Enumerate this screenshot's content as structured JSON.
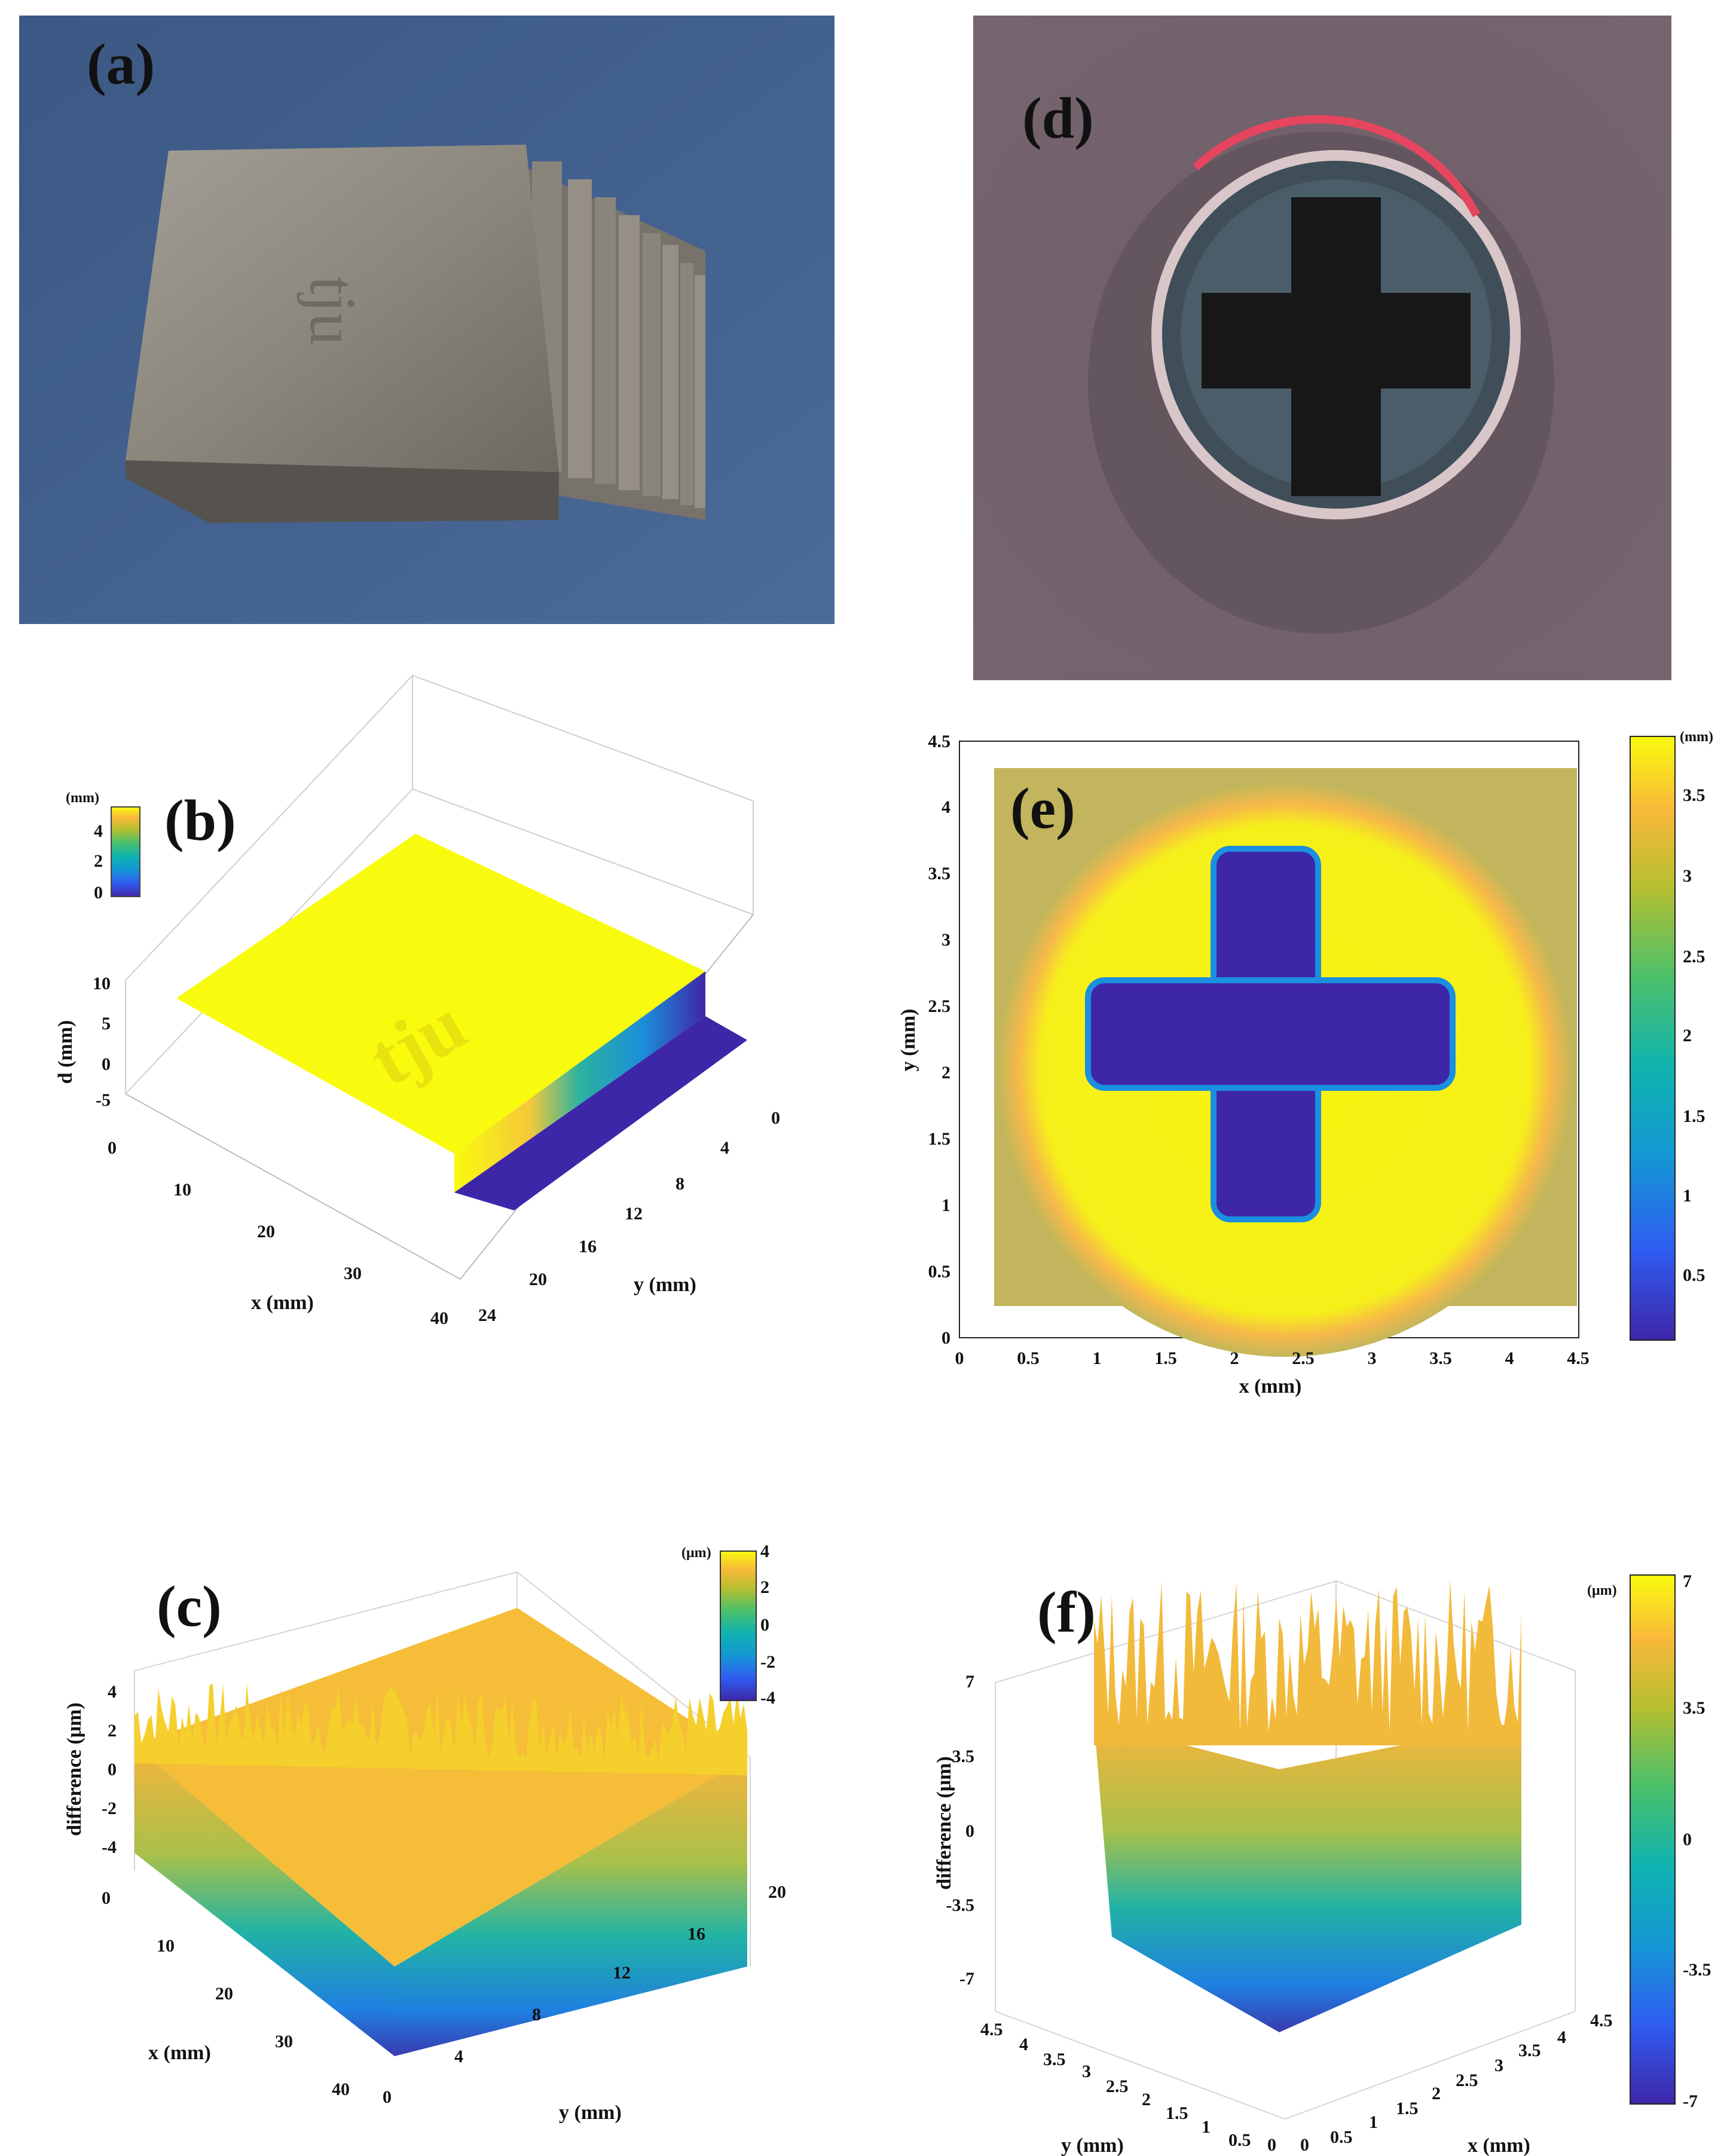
{
  "figure": {
    "panels": {
      "a": {
        "label": "(a)",
        "engraving": "tju"
      },
      "b": {
        "label": "(b)",
        "colorbar_unit": "(mm)",
        "colorbar_ticks": [
          "4",
          "2",
          "0"
        ],
        "zlabel": "d (mm)",
        "xlabel": "x (mm)",
        "ylabel": "y (mm)",
        "zticks": [
          "10",
          "5",
          "0",
          "-5"
        ],
        "xticks": [
          "0",
          "10",
          "20",
          "30",
          "40"
        ],
        "yticks": [
          "0",
          "4",
          "8",
          "12",
          "16",
          "20",
          "24"
        ],
        "engraving": "tju"
      },
      "c": {
        "label": "(c)",
        "colorbar_unit": "(μm)",
        "colorbar_ticks": [
          "4",
          "2",
          "0",
          "-2",
          "-4"
        ],
        "zlabel": "difference (μm)",
        "xlabel": "x (mm)",
        "ylabel": "y (mm)",
        "zticks": [
          "4",
          "2",
          "0",
          "-2",
          "-4"
        ],
        "xticks": [
          "0",
          "10",
          "20",
          "30",
          "40"
        ],
        "yticks": [
          "0",
          "4",
          "8",
          "12",
          "16",
          "20"
        ]
      },
      "d": {
        "label": "(d)"
      },
      "e": {
        "label": "(e)",
        "colorbar_unit": "(mm)",
        "colorbar_ticks": [
          "3.5",
          "3",
          "2.5",
          "2",
          "1.5",
          "1",
          "0.5"
        ],
        "xlabel": "x (mm)",
        "ylabel": "y (mm)",
        "xticks": [
          "0",
          "0.5",
          "1",
          "1.5",
          "2",
          "2.5",
          "3",
          "3.5",
          "4",
          "4.5"
        ],
        "yticks": [
          "0",
          "0.5",
          "1",
          "1.5",
          "2",
          "2.5",
          "3",
          "3.5",
          "4",
          "4.5"
        ]
      },
      "f": {
        "label": "(f)",
        "colorbar_unit": "(μm)",
        "colorbar_ticks": [
          "7",
          "3.5",
          "0",
          "-3.5",
          "-7"
        ],
        "zlabel": "difference (μm)",
        "xlabel": "x (mm)",
        "ylabel": "y (mm)",
        "zticks": [
          "7",
          "3.5",
          "0",
          "-3.5",
          "-7"
        ],
        "yticks": [
          "4.5",
          "4",
          "3.5",
          "3",
          "2.5",
          "2",
          "1.5",
          "1",
          "0.5",
          "0"
        ],
        "xticks": [
          "0",
          "0.5",
          "1",
          "1.5",
          "2",
          "2.5",
          "3",
          "3.5",
          "4",
          "4.5"
        ]
      }
    }
  },
  "chart_data": [
    {
      "type": "heatmap",
      "panel": "b",
      "title": "",
      "xlabel": "x (mm)",
      "ylabel": "y (mm)",
      "zlabel": "d (mm)",
      "xlim": [
        0,
        40
      ],
      "ylim": [
        0,
        24
      ],
      "zlim": [
        -5,
        10
      ],
      "clim": [
        0,
        4.5
      ]
    },
    {
      "type": "heatmap",
      "panel": "c",
      "title": "",
      "xlabel": "x (mm)",
      "ylabel": "y (mm)",
      "zlabel": "difference (μm)",
      "xlim": [
        0,
        40
      ],
      "ylim": [
        0,
        20
      ],
      "zlim": [
        -4,
        4
      ],
      "clim": [
        -4,
        4
      ]
    },
    {
      "type": "heatmap",
      "panel": "e",
      "title": "",
      "xlabel": "x (mm)",
      "ylabel": "y (mm)",
      "xlim": [
        0,
        4.5
      ],
      "ylim": [
        0,
        4.5
      ],
      "clim": [
        0.1,
        3.8
      ]
    },
    {
      "type": "heatmap",
      "panel": "f",
      "title": "",
      "xlabel": "x (mm)",
      "ylabel": "y (mm)",
      "zlabel": "difference (μm)",
      "xlim": [
        0,
        4.5
      ],
      "ylim": [
        0,
        4.5
      ],
      "zlim": [
        -7,
        7
      ],
      "clim": [
        -7,
        7
      ]
    }
  ],
  "colors": {
    "yellow": "#f9fb0e",
    "blue": "#3e26a8",
    "teal": "#20b2aa",
    "orange": "#f7b43c"
  }
}
